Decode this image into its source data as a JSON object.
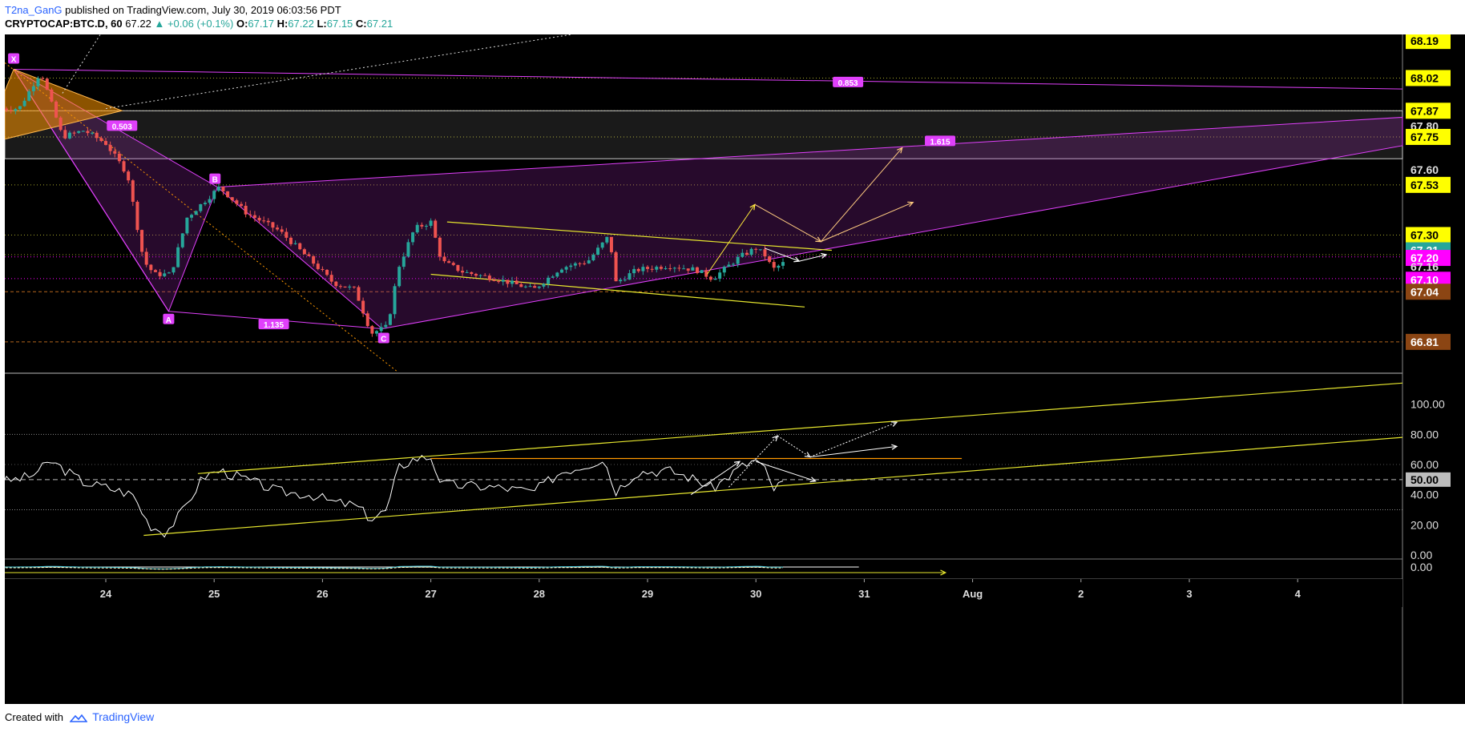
{
  "header": {
    "author": "T2na_GanG",
    "published_text": "published on TradingView.com, July 30, 2019 06:03:56 PDT",
    "symbol": "CRYPTOCAP:BTC.D, 60",
    "last": "67.22",
    "change": "+0.06 (+0.1%)",
    "ohlc": {
      "o": "67.17",
      "h": "67.22",
      "l": "67.15",
      "c": "67.21"
    }
  },
  "footer": {
    "created_with": "Created with",
    "brand": "TradingView"
  },
  "colors": {
    "background": "#000000",
    "candle_up": "#26a69a",
    "candle_down": "#ef5350",
    "pattern": "#e040fb",
    "pattern_fill": "#9c27b0",
    "trendline": "#e6e62e",
    "rsi": "#ffffff",
    "label_yellow": "#ffff00",
    "label_magenta": "#ff00ff",
    "label_teal": "#26a69a",
    "label_brown": "#8b4513"
  },
  "chart_data": [
    {
      "type": "candlestick",
      "pane": "price",
      "interval": "60",
      "x_tick_labels": [
        "24",
        "25",
        "26",
        "27",
        "28",
        "29",
        "30",
        "31",
        "Aug",
        "2",
        "3",
        "4"
      ],
      "y_range": [
        66.67,
        68.22
      ],
      "y_tick_labels": [
        "68.19",
        "68.02",
        "67.87",
        "67.80",
        "67.75",
        "67.60",
        "67.53",
        "67.30",
        "67.21",
        "67.20",
        "67.16",
        "67.10",
        "67.04",
        "66.81"
      ],
      "close_path": [
        [
          23.2,
          67.88
        ],
        [
          23.4,
          68.05
        ],
        [
          23.6,
          67.75
        ],
        [
          23.8,
          67.78
        ],
        [
          24.0,
          67.72
        ],
        [
          24.2,
          67.58
        ],
        [
          24.35,
          67.18
        ],
        [
          24.45,
          67.12
        ],
        [
          24.6,
          67.12
        ],
        [
          24.75,
          67.38
        ],
        [
          24.9,
          67.45
        ],
        [
          25.05,
          67.52
        ],
        [
          25.3,
          67.4
        ],
        [
          25.6,
          67.32
        ],
        [
          25.9,
          67.18
        ],
        [
          26.1,
          67.08
        ],
        [
          26.3,
          67.05
        ],
        [
          26.45,
          66.85
        ],
        [
          26.6,
          66.88
        ],
        [
          26.7,
          67.15
        ],
        [
          26.85,
          67.33
        ],
        [
          27.0,
          67.36
        ],
        [
          27.1,
          67.18
        ],
        [
          27.3,
          67.13
        ],
        [
          27.6,
          67.1
        ],
        [
          27.95,
          67.05
        ],
        [
          28.2,
          67.15
        ],
        [
          28.45,
          67.18
        ],
        [
          28.65,
          67.3
        ],
        [
          28.7,
          67.08
        ],
        [
          28.9,
          67.14
        ],
        [
          29.2,
          67.16
        ],
        [
          29.45,
          67.14
        ],
        [
          29.6,
          67.1
        ],
        [
          29.85,
          67.2
        ],
        [
          30.0,
          67.24
        ],
        [
          30.1,
          67.2
        ],
        [
          30.15,
          67.14
        ],
        [
          30.25,
          67.17
        ]
      ],
      "harmonic_points": [
        "X",
        "A",
        "B",
        "C"
      ],
      "ratios": [
        "0.503",
        "0.853",
        "1.135",
        "1.615"
      ]
    },
    {
      "type": "line",
      "pane": "rsi",
      "name": "",
      "y_range": [
        0,
        120
      ],
      "y_tick_labels": [
        "100.00",
        "80.00",
        "60.00",
        "50.00",
        "40.00",
        "20.00",
        "0.00"
      ],
      "current_value": "50.00",
      "values_path": [
        [
          23.0,
          48
        ],
        [
          23.3,
          52
        ],
        [
          23.5,
          62
        ],
        [
          23.8,
          48
        ],
        [
          24.0,
          45
        ],
        [
          24.25,
          40
        ],
        [
          24.4,
          20
        ],
        [
          24.55,
          15
        ],
        [
          24.7,
          28
        ],
        [
          24.9,
          52
        ],
        [
          25.05,
          56
        ],
        [
          25.3,
          50
        ],
        [
          25.6,
          42
        ],
        [
          25.9,
          40
        ],
        [
          26.1,
          35
        ],
        [
          26.3,
          33
        ],
        [
          26.45,
          24
        ],
        [
          26.6,
          30
        ],
        [
          26.7,
          58
        ],
        [
          26.85,
          64
        ],
        [
          27.0,
          65
        ],
        [
          27.1,
          47
        ],
        [
          27.3,
          46
        ],
        [
          27.6,
          45
        ],
        [
          27.95,
          42
        ],
        [
          28.2,
          55
        ],
        [
          28.45,
          60
        ],
        [
          28.6,
          64
        ],
        [
          28.7,
          42
        ],
        [
          28.9,
          55
        ],
        [
          29.2,
          56
        ],
        [
          29.45,
          50
        ],
        [
          29.6,
          44
        ],
        [
          29.85,
          58
        ],
        [
          30.0,
          63
        ],
        [
          30.1,
          55
        ],
        [
          30.15,
          43
        ],
        [
          30.25,
          48
        ]
      ]
    },
    {
      "type": "line",
      "pane": "oscillator",
      "y_tick_labels": [
        "0.00"
      ]
    }
  ]
}
